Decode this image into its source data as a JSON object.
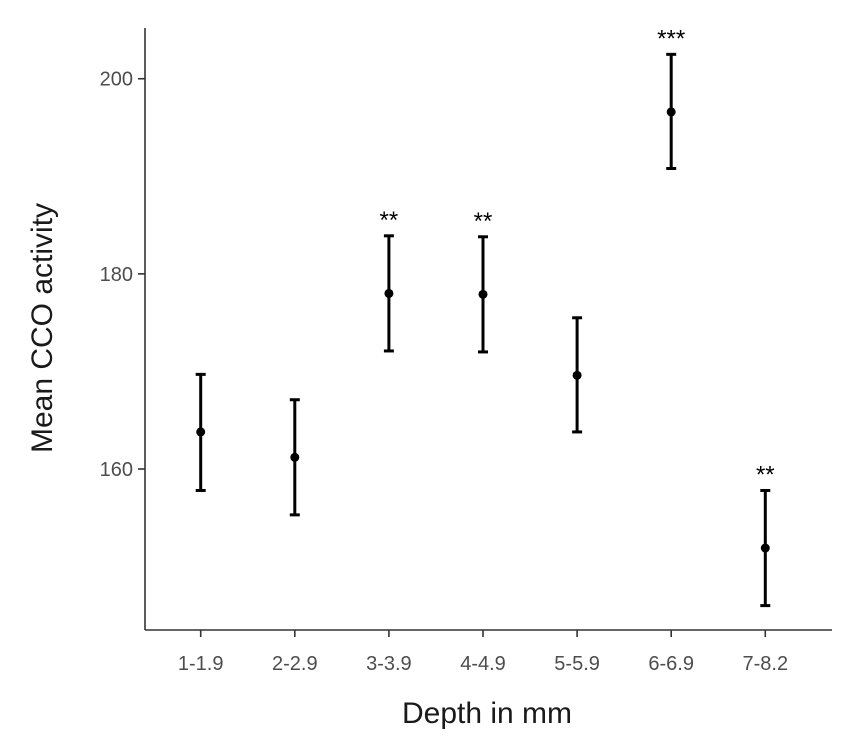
{
  "chart_data": {
    "type": "scatter",
    "title": "",
    "xlabel": "Depth in mm",
    "ylabel": "Mean CCO activity",
    "categories": [
      "1-1.9",
      "2-2.9",
      "3-3.9",
      "4-4.9",
      "5-5.9",
      "6-6.9",
      "7-8.2"
    ],
    "points": [
      {
        "category": "1-1.9",
        "mean": 163.8,
        "lower": 157.8,
        "upper": 169.7,
        "significance": ""
      },
      {
        "category": "2-2.9",
        "mean": 161.2,
        "lower": 155.3,
        "upper": 167.1,
        "significance": ""
      },
      {
        "category": "3-3.9",
        "mean": 178.0,
        "lower": 172.1,
        "upper": 183.9,
        "significance": "**"
      },
      {
        "category": "4-4.9",
        "mean": 177.9,
        "lower": 172.0,
        "upper": 183.8,
        "significance": "**"
      },
      {
        "category": "5-5.9",
        "mean": 169.6,
        "lower": 163.8,
        "upper": 175.5,
        "significance": ""
      },
      {
        "category": "6-6.9",
        "mean": 196.6,
        "lower": 190.8,
        "upper": 202.5,
        "significance": "***"
      },
      {
        "category": "7-8.2",
        "mean": 151.9,
        "lower": 146.0,
        "upper": 157.8,
        "significance": "**"
      }
    ],
    "yticks": [
      "160",
      "180",
      "200"
    ],
    "ylim": [
      143.5,
      205.2
    ],
    "grid": false,
    "legend": "none",
    "colors": {
      "point": "#000000",
      "axis": "#333333",
      "tick_text": "#4d4d4d"
    }
  }
}
